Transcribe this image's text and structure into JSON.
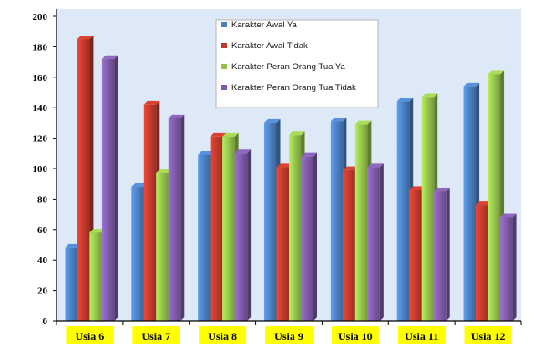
{
  "chart_data": {
    "type": "bar",
    "title": "",
    "xlabel": "",
    "ylabel": "",
    "ylim": [
      0,
      200
    ],
    "yticks": [
      0,
      20,
      40,
      60,
      80,
      100,
      120,
      140,
      160,
      180,
      200
    ],
    "grid": false,
    "legend_position": "top-center",
    "categories": [
      "Usia 6",
      "Usia 7",
      "Usia 8",
      "Usia 9",
      "Usia 10",
      "Usia 11",
      "Usia 12"
    ],
    "series": [
      {
        "name": "Karakter Awal Ya",
        "color": "#4a7ebf",
        "values": [
          48,
          88,
          109,
          130,
          131,
          144,
          154
        ]
      },
      {
        "name": "Karakter Awal Tidak",
        "color": "#c0392b",
        "values": [
          185,
          142,
          121,
          101,
          99,
          86,
          76
        ]
      },
      {
        "name": "Karakter Peran Orang Tua Ya",
        "color": "#92c04a",
        "values": [
          58,
          97,
          121,
          122,
          129,
          147,
          162
        ]
      },
      {
        "name": "Karakter Peran Orang Tua Tidak",
        "color": "#7d5aa6",
        "values": [
          172,
          133,
          110,
          108,
          101,
          85,
          68
        ]
      }
    ],
    "category_label_highlight": "#ffff00",
    "plot_background": "#dde9f7"
  }
}
